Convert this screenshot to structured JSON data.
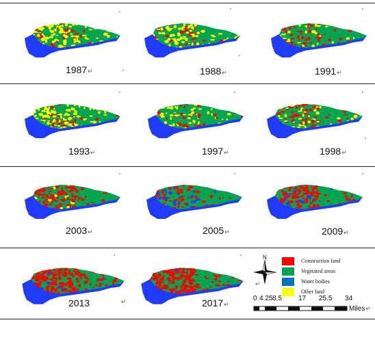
{
  "figure": {
    "panels": [
      {
        "year": "1987",
        "mix": {
          "construction": 0.1,
          "vegetated": 0.4,
          "water": 0.0,
          "other": 0.5
        }
      },
      {
        "year": "1988",
        "mix": {
          "construction": 0.12,
          "vegetated": 0.58,
          "water": 0.0,
          "other": 0.3
        }
      },
      {
        "year": "1991",
        "mix": {
          "construction": 0.2,
          "vegetated": 0.7,
          "water": 0.0,
          "other": 0.1
        }
      },
      {
        "year": "1993",
        "mix": {
          "construction": 0.12,
          "vegetated": 0.48,
          "water": 0.0,
          "other": 0.4
        }
      },
      {
        "year": "1997",
        "mix": {
          "construction": 0.12,
          "vegetated": 0.68,
          "water": 0.0,
          "other": 0.2
        }
      },
      {
        "year": "1998",
        "mix": {
          "construction": 0.22,
          "vegetated": 0.6,
          "water": 0.0,
          "other": 0.18
        }
      },
      {
        "year": "2003",
        "mix": {
          "construction": 0.45,
          "vegetated": 0.5,
          "water": 0.0,
          "other": 0.05
        }
      },
      {
        "year": "2005",
        "mix": {
          "construction": 0.25,
          "vegetated": 0.6,
          "water": 0.15,
          "other": 0.0
        }
      },
      {
        "year": "2009",
        "mix": {
          "construction": 0.45,
          "vegetated": 0.5,
          "water": 0.05,
          "other": 0.0
        }
      },
      {
        "year": "2013",
        "mix": {
          "construction": 0.7,
          "vegetated": 0.28,
          "water": 0.02,
          "other": 0.0
        }
      },
      {
        "year": "2017",
        "mix": {
          "construction": 0.65,
          "vegetated": 0.33,
          "water": 0.02,
          "other": 0.0
        }
      }
    ],
    "paragraph_mark": "↵",
    "north_label": "N",
    "legend": [
      {
        "label": "Construction land",
        "color": "#ff0000"
      },
      {
        "label": "Vegetated areas",
        "color": "#00a550"
      },
      {
        "label": "Water bodies",
        "color": "#0070c0"
      },
      {
        "label": "Other land",
        "color": "#ffff00"
      }
    ],
    "scale": {
      "ticks": [
        "0",
        "4.25",
        "8.5",
        "17",
        "25.5",
        "34"
      ],
      "unit": "Miles"
    },
    "colors": {
      "construction": "#ff0000",
      "vegetated": "#00a550",
      "water": "#1f3bff",
      "other": "#ffff00",
      "rule": "#222222"
    }
  }
}
